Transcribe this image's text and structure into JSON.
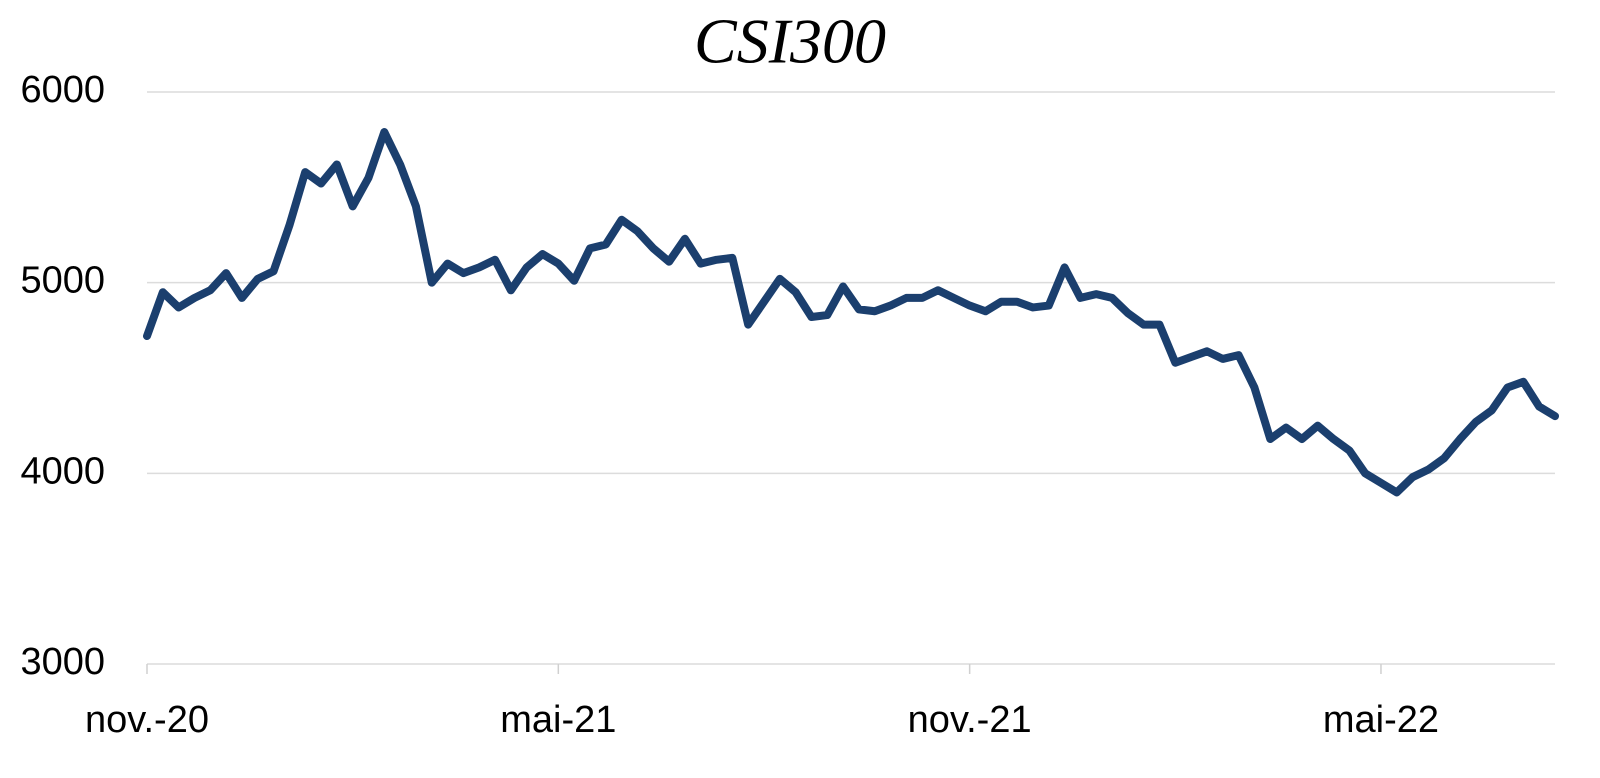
{
  "chart_data": {
    "type": "line",
    "title": "CSI300",
    "categories": [
      "nov.-20",
      null,
      null,
      null,
      null,
      null,
      null,
      null,
      null,
      null,
      null,
      null,
      null,
      null,
      null,
      null,
      null,
      null,
      null,
      null,
      null,
      null,
      null,
      null,
      null,
      null,
      "mai-21",
      null,
      null,
      null,
      null,
      null,
      null,
      null,
      null,
      null,
      null,
      null,
      null,
      null,
      null,
      null,
      null,
      null,
      null,
      null,
      null,
      null,
      null,
      null,
      null,
      null,
      "nov.-21",
      null,
      null,
      null,
      null,
      null,
      null,
      null,
      null,
      null,
      null,
      null,
      null,
      null,
      null,
      null,
      null,
      null,
      null,
      null,
      null,
      null,
      null,
      null,
      null,
      null,
      "mai-22",
      null,
      null,
      null,
      null,
      null,
      null,
      null,
      null,
      null,
      null,
      null
    ],
    "series": [
      {
        "name": "CSI300",
        "color": "#1b3f6e",
        "values": [
          4720,
          4950,
          4870,
          4920,
          4960,
          5050,
          4920,
          5020,
          5060,
          5300,
          5580,
          5520,
          5620,
          5400,
          5550,
          5790,
          5620,
          5400,
          5000,
          5100,
          5050,
          5080,
          5120,
          4960,
          5080,
          5150,
          5100,
          5010,
          5180,
          5200,
          5330,
          5270,
          5180,
          5110,
          5230,
          5100,
          5120,
          5130,
          4780,
          4900,
          5020,
          4950,
          4820,
          4830,
          4980,
          4860,
          4850,
          4880,
          4920,
          4920,
          4960,
          4920,
          4880,
          4850,
          4900,
          4900,
          4870,
          4880,
          5080,
          4920,
          4940,
          4920,
          4840,
          4780,
          4780,
          4580,
          4610,
          4640,
          4600,
          4620,
          4450,
          4180,
          4240,
          4180,
          4250,
          4180,
          4120,
          4000,
          3950,
          3900,
          3980,
          4020,
          4080,
          4180,
          4270,
          4330,
          4450,
          4480,
          4350,
          4300
        ]
      }
    ],
    "ylim": [
      3000,
      6000
    ],
    "yticks": [
      3000,
      4000,
      5000,
      6000
    ],
    "grid": true
  }
}
